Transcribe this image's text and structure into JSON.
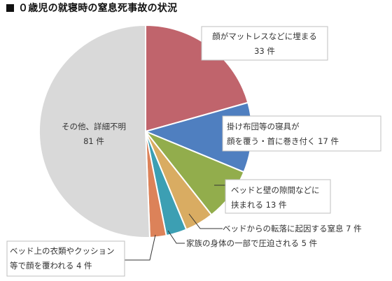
{
  "title": "０歳児の就寝時の窒息死事故の状況",
  "chart_data": {
    "type": "pie",
    "title": "０歳児の就寝時の窒息死事故の状況",
    "start": "12 o'clock, clockwise",
    "slices": [
      {
        "lines": [
          "顔がマットレスなどに埋まる",
          "33 件"
        ],
        "value": 33,
        "color": "#c0646c"
      },
      {
        "lines": [
          "掛け布団等の寝具が",
          "顔を覆う・首に巻き付く 17 件"
        ],
        "value": 17,
        "color": "#4f7fc0"
      },
      {
        "lines": [
          "ベッドと壁の隙間などに",
          "挟まれる 13 件"
        ],
        "value": 13,
        "color": "#92ad4c"
      },
      {
        "lines": [
          "ベッドからの転落に起因する窒息  7 件"
        ],
        "value": 7,
        "color": "#d9ac62"
      },
      {
        "lines": [
          "家族の身体の一部で圧迫される 5 件"
        ],
        "value": 5,
        "color": "#3c9fb3"
      },
      {
        "lines": [
          "ベッド上の衣類やクッション",
          "等で顔を覆われる 4 件"
        ],
        "value": 4,
        "color": "#dc8259"
      },
      {
        "lines": [
          "その他、詳細不明",
          "81 件"
        ],
        "value": 81,
        "color": "#d9d9d9"
      }
    ]
  }
}
